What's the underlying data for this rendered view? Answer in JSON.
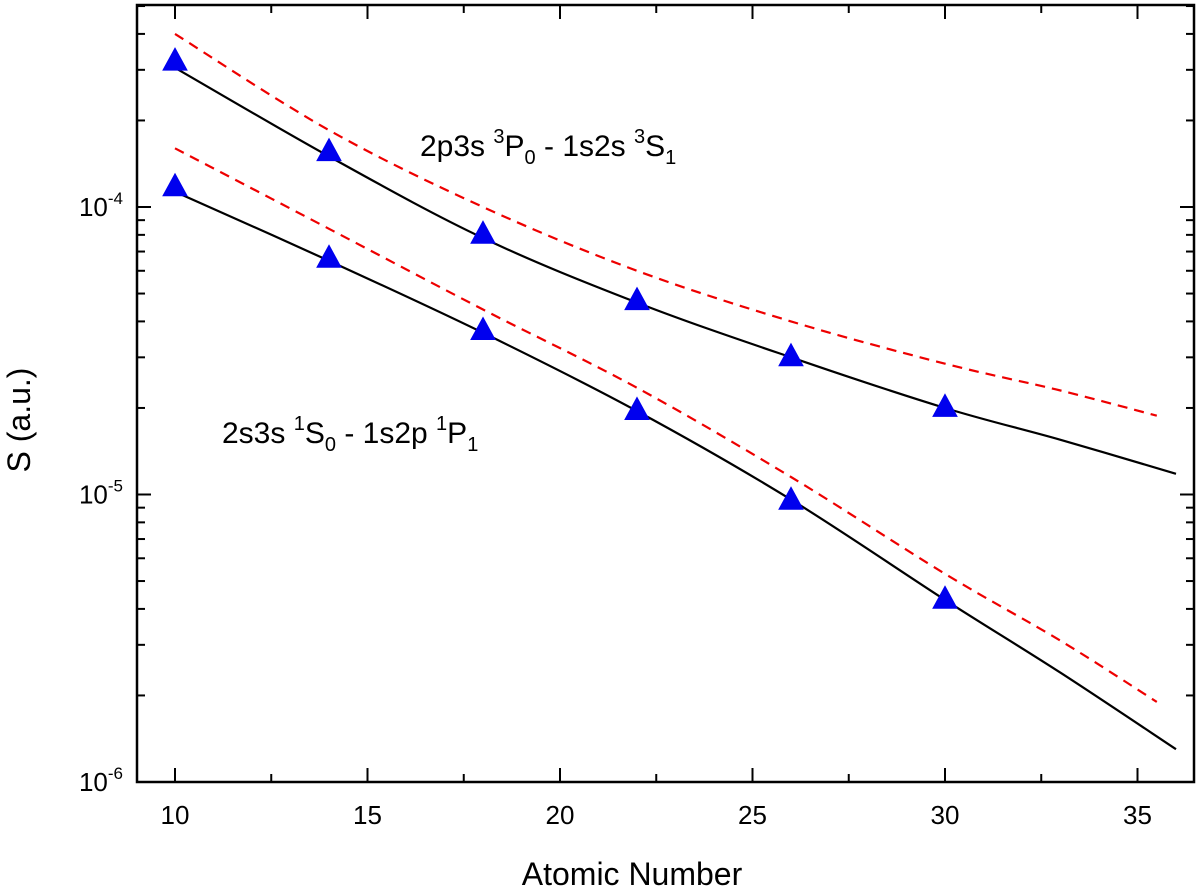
{
  "chart_data": {
    "type": "line",
    "xlabel": "Atomic Number",
    "ylabel": "S (a.u.)",
    "xlim": [
      9,
      37
    ],
    "ylim": [
      1e-06,
      0.00055
    ],
    "yscale": "log",
    "grid": false,
    "x_ticks": [
      {
        "value": 10,
        "label": "10"
      },
      {
        "value": 15,
        "label": "15"
      },
      {
        "value": 20,
        "label": "20"
      },
      {
        "value": 25,
        "label": "25"
      },
      {
        "value": 30,
        "label": "30"
      },
      {
        "value": 35,
        "label": "35"
      }
    ],
    "y_ticks": [
      {
        "value": 0.0001,
        "base": "10",
        "exp": "-4"
      },
      {
        "value": 1e-05,
        "base": "10",
        "exp": "-5"
      },
      {
        "value": 1e-06,
        "base": "10",
        "exp": "-6"
      }
    ],
    "annotations": [
      {
        "id": "upper",
        "parts": [
          {
            "t": "2p3s "
          },
          {
            "t": "3",
            "sup": true
          },
          {
            "t": "P"
          },
          {
            "t": "0",
            "sub": true
          },
          {
            "t": " - 1s2s "
          },
          {
            "t": "3",
            "sup": true
          },
          {
            "t": "S"
          },
          {
            "t": "1",
            "sub": true
          }
        ]
      },
      {
        "id": "lower",
        "parts": [
          {
            "t": "2s3s "
          },
          {
            "t": "1",
            "sup": true
          },
          {
            "t": "S"
          },
          {
            "t": "0",
            "sub": true
          },
          {
            "t": " - 1s2p "
          },
          {
            "t": "1",
            "sup": true
          },
          {
            "t": "P"
          },
          {
            "t": "1",
            "sub": true
          }
        ]
      }
    ],
    "series": [
      {
        "style": "markers",
        "marker": "triangle",
        "color": "#0000ee",
        "x": [
          10,
          14,
          18,
          22,
          26,
          30
        ],
        "y": [
          0.00032,
          0.000155,
          8e-05,
          4.7e-05,
          3e-05,
          2e-05
        ]
      },
      {
        "style": "solid",
        "color": "#000000",
        "x": [
          10,
          14,
          18,
          22,
          26,
          30,
          33,
          36
        ],
        "y": [
          0.000305,
          0.00015,
          7.8e-05,
          4.65e-05,
          3e-05,
          2e-05,
          1.55e-05,
          1.18e-05
        ]
      },
      {
        "style": "dashed",
        "color": "#ee0000",
        "x": [
          10,
          14,
          18,
          22,
          26,
          30,
          33,
          35.5
        ],
        "y": [
          0.0004,
          0.000185,
          0.0001,
          6e-05,
          4e-05,
          2.85e-05,
          2.3e-05,
          1.88e-05
        ]
      },
      {
        "style": "markers",
        "marker": "triangle",
        "color": "#0000ee",
        "x": [
          10,
          14,
          18,
          22,
          26,
          30
        ],
        "y": [
          0.000117,
          6.6e-05,
          3.7e-05,
          1.95e-05,
          9.5e-06,
          4.3e-06
        ]
      },
      {
        "style": "solid",
        "color": "#000000",
        "x": [
          10,
          14,
          18,
          22,
          26,
          30,
          33,
          36
        ],
        "y": [
          0.000113,
          6.5e-05,
          3.65e-05,
          1.95e-05,
          9.6e-06,
          4.3e-06,
          2.4e-06,
          1.3e-06
        ]
      },
      {
        "style": "dashed",
        "color": "#ee0000",
        "x": [
          10,
          14,
          18,
          22,
          26,
          30,
          33,
          35.5
        ],
        "y": [
          0.00016,
          8.4e-05,
          4.4e-05,
          2.35e-05,
          1.15e-05,
          5.3e-06,
          3.1e-06,
          1.9e-06
        ]
      }
    ]
  }
}
